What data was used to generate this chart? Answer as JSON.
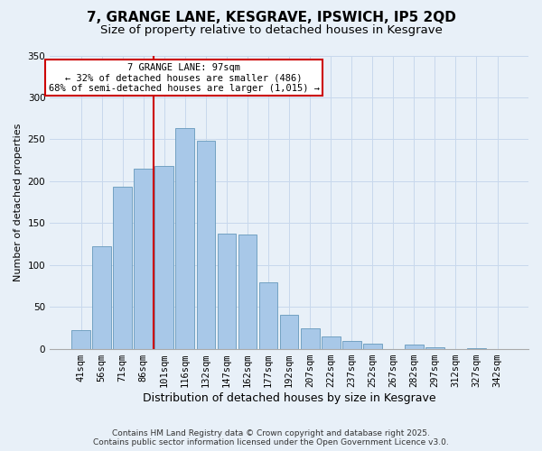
{
  "title": "7, GRANGE LANE, KESGRAVE, IPSWICH, IP5 2QD",
  "subtitle": "Size of property relative to detached houses in Kesgrave",
  "xlabel": "Distribution of detached houses by size in Kesgrave",
  "ylabel": "Number of detached properties",
  "bar_labels": [
    "41sqm",
    "56sqm",
    "71sqm",
    "86sqm",
    "101sqm",
    "116sqm",
    "132sqm",
    "147sqm",
    "162sqm",
    "177sqm",
    "192sqm",
    "207sqm",
    "222sqm",
    "237sqm",
    "252sqm",
    "267sqm",
    "282sqm",
    "297sqm",
    "312sqm",
    "327sqm",
    "342sqm"
  ],
  "bar_values": [
    22,
    122,
    193,
    215,
    218,
    263,
    248,
    137,
    136,
    79,
    41,
    24,
    15,
    9,
    6,
    0,
    5,
    2,
    0,
    1,
    0
  ],
  "bar_color": "#a8c8e8",
  "bar_edge_color": "#6699bb",
  "vline_x_index": 4,
  "vline_color": "#cc0000",
  "annotation_title": "7 GRANGE LANE: 97sqm",
  "annotation_line1": "← 32% of detached houses are smaller (486)",
  "annotation_line2": "68% of semi-detached houses are larger (1,015) →",
  "annotation_box_facecolor": "#ffffff",
  "annotation_box_edgecolor": "#cc0000",
  "ylim": [
    0,
    350
  ],
  "yticks": [
    0,
    50,
    100,
    150,
    200,
    250,
    300,
    350
  ],
  "grid_color": "#c8d8ec",
  "background_color": "#e8f0f8",
  "footer_line1": "Contains HM Land Registry data © Crown copyright and database right 2025.",
  "footer_line2": "Contains public sector information licensed under the Open Government Licence v3.0.",
  "title_fontsize": 11,
  "subtitle_fontsize": 9.5,
  "xlabel_fontsize": 9,
  "ylabel_fontsize": 8,
  "tick_fontsize": 7.5,
  "annotation_fontsize": 7.5,
  "footer_fontsize": 6.5
}
